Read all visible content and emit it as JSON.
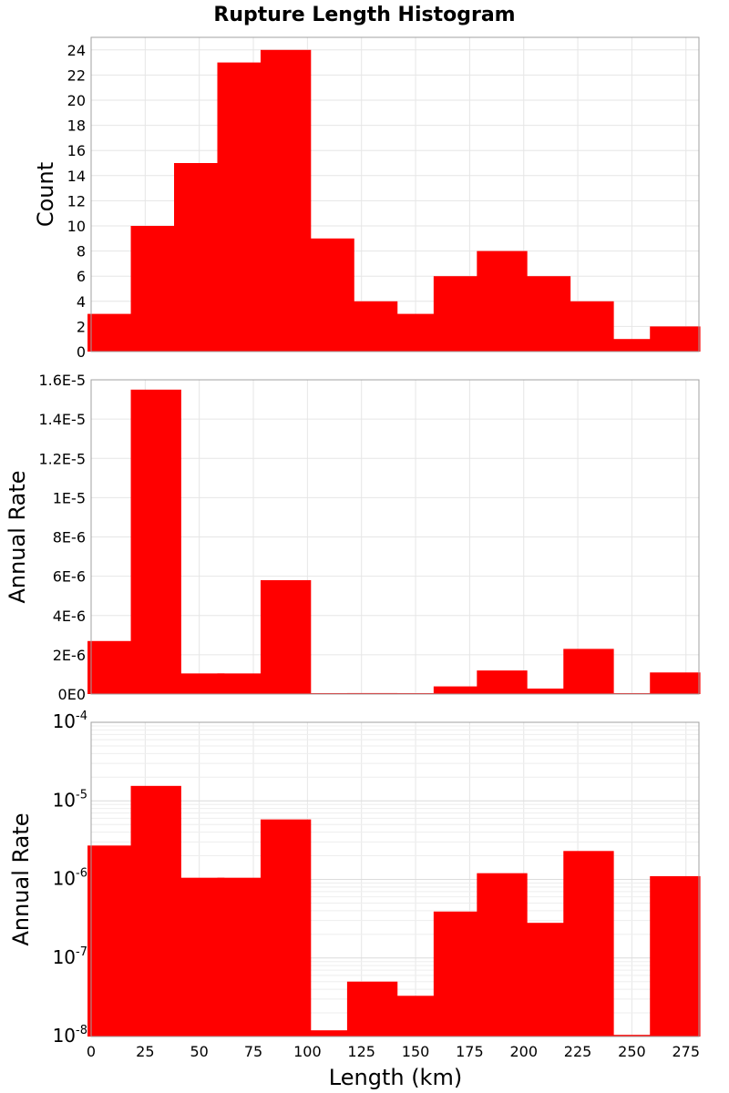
{
  "chart_data": {
    "type": "bar",
    "title": "Rupture Length Histogram",
    "xlabel": "Length (km)",
    "x_ticks": [
      "0",
      "25",
      "50",
      "75",
      "100",
      "125",
      "150",
      "175",
      "200",
      "225",
      "250",
      "275"
    ],
    "xlim": [
      0,
      281
    ],
    "bin_width": 25,
    "bar_color": "#ff0000",
    "grid": true,
    "panels": [
      {
        "ylabel": "Count",
        "scale": "linear",
        "ylim": [
          0,
          25
        ],
        "y_ticks": [
          "0",
          "2",
          "4",
          "6",
          "8",
          "10",
          "12",
          "14",
          "16",
          "18",
          "20",
          "22",
          "24"
        ],
        "series": [
          {
            "x": [
              10,
              30,
              50,
              70,
              90,
              110,
              130,
              150,
              170,
              190,
              210,
              230,
              250,
              270
            ],
            "values": [
              3,
              10,
              15,
              23,
              24,
              9,
              4,
              3,
              6,
              8,
              6,
              4,
              1,
              2
            ]
          }
        ]
      },
      {
        "ylabel": "Annual Rate",
        "scale": "linear",
        "ylim": [
          0,
          1.6e-05
        ],
        "y_ticks": [
          "0E0",
          "2E-6",
          "4E-6",
          "6E-6",
          "8E-6",
          "1E-5",
          "1.2E-5",
          "1.4E-5",
          "1.6E-5"
        ],
        "series": [
          {
            "x": [
              10,
              30,
              50,
              70,
              90,
              110,
              130,
              150,
              170,
              190,
              210,
              230,
              250,
              270
            ],
            "values": [
              2.7e-06,
              1.55e-05,
              1.05e-06,
              1.05e-06,
              5.8e-06,
              1.2e-08,
              5e-08,
              3.3e-08,
              3.9e-07,
              1.2e-06,
              2.8e-07,
              2.3e-06,
              1.05e-08,
              1.1e-06
            ]
          }
        ]
      },
      {
        "ylabel": "Annual Rate",
        "scale": "log",
        "ylim": [
          1e-08,
          0.0001
        ],
        "y_ticks": [
          {
            "base": "10",
            "exp": "-8"
          },
          {
            "base": "10",
            "exp": "-7"
          },
          {
            "base": "10",
            "exp": "-6"
          },
          {
            "base": "10",
            "exp": "-5"
          },
          {
            "base": "10",
            "exp": "-4"
          }
        ],
        "series": [
          {
            "x": [
              10,
              30,
              50,
              70,
              90,
              110,
              130,
              150,
              170,
              190,
              210,
              230,
              250,
              270
            ],
            "values": [
              2.7e-06,
              1.55e-05,
              1.05e-06,
              1.05e-06,
              5.8e-06,
              1.2e-08,
              5e-08,
              3.3e-08,
              3.9e-07,
              1.2e-06,
              2.8e-07,
              2.3e-06,
              1.05e-08,
              1.1e-06
            ]
          }
        ]
      }
    ]
  }
}
